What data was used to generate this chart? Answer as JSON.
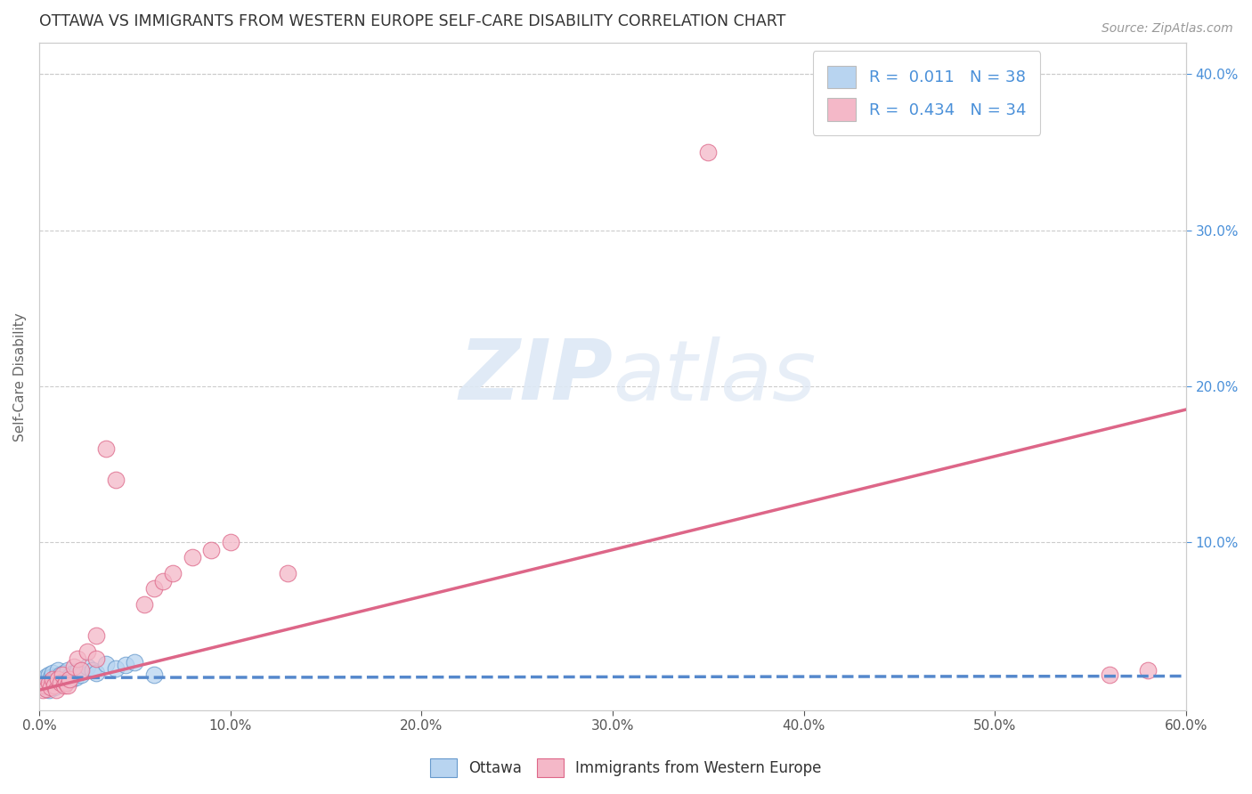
{
  "title": "OTTAWA VS IMMIGRANTS FROM WESTERN EUROPE SELF-CARE DISABILITY CORRELATION CHART",
  "source": "Source: ZipAtlas.com",
  "ylabel": "Self-Care Disability",
  "xlim": [
    0.0,
    0.6
  ],
  "ylim": [
    -0.008,
    0.42
  ],
  "xticks": [
    0.0,
    0.1,
    0.2,
    0.3,
    0.4,
    0.5,
    0.6
  ],
  "yticks_right": [
    0.1,
    0.2,
    0.3,
    0.4
  ],
  "legend_entries": [
    {
      "label": "Ottawa",
      "R": "0.011",
      "N": "38",
      "color": "#b8d4f0"
    },
    {
      "label": "Immigrants from Western Europe",
      "R": "0.434",
      "N": "34",
      "color": "#f4b8c8"
    }
  ],
  "legend_text_color": "#4a90d9",
  "background_color": "#ffffff",
  "grid_color": "#cccccc",
  "watermark_zip": "ZIP",
  "watermark_atlas": "atlas",
  "blue_scatter_x": [
    0.002,
    0.003,
    0.003,
    0.004,
    0.004,
    0.005,
    0.005,
    0.005,
    0.006,
    0.006,
    0.007,
    0.007,
    0.008,
    0.008,
    0.009,
    0.009,
    0.01,
    0.01,
    0.011,
    0.011,
    0.012,
    0.013,
    0.014,
    0.015,
    0.016,
    0.017,
    0.018,
    0.019,
    0.02,
    0.022,
    0.025,
    0.028,
    0.03,
    0.035,
    0.04,
    0.045,
    0.05,
    0.06
  ],
  "blue_scatter_y": [
    0.01,
    0.008,
    0.012,
    0.006,
    0.014,
    0.005,
    0.01,
    0.015,
    0.008,
    0.013,
    0.011,
    0.016,
    0.007,
    0.012,
    0.009,
    0.014,
    0.012,
    0.018,
    0.01,
    0.015,
    0.013,
    0.016,
    0.011,
    0.018,
    0.014,
    0.012,
    0.016,
    0.013,
    0.017,
    0.015,
    0.02,
    0.018,
    0.016,
    0.022,
    0.019,
    0.021,
    0.023,
    0.015
  ],
  "pink_scatter_x": [
    0.002,
    0.003,
    0.004,
    0.005,
    0.006,
    0.007,
    0.008,
    0.009,
    0.01,
    0.011,
    0.012,
    0.013,
    0.014,
    0.015,
    0.016,
    0.018,
    0.02,
    0.022,
    0.025,
    0.03,
    0.035,
    0.04,
    0.055,
    0.06,
    0.065,
    0.07,
    0.08,
    0.09,
    0.1,
    0.13,
    0.35,
    0.56,
    0.58,
    0.03
  ],
  "pink_scatter_y": [
    0.005,
    0.008,
    0.006,
    0.01,
    0.007,
    0.012,
    0.008,
    0.005,
    0.012,
    0.01,
    0.015,
    0.008,
    0.01,
    0.008,
    0.012,
    0.02,
    0.025,
    0.018,
    0.03,
    0.025,
    0.16,
    0.14,
    0.06,
    0.07,
    0.075,
    0.08,
    0.09,
    0.095,
    0.1,
    0.08,
    0.35,
    0.015,
    0.018,
    0.04
  ],
  "blue_line_x": [
    0.0,
    0.6
  ],
  "blue_line_y": [
    0.013,
    0.014
  ],
  "pink_line_x": [
    0.0,
    0.6
  ],
  "pink_line_y": [
    0.005,
    0.185
  ]
}
